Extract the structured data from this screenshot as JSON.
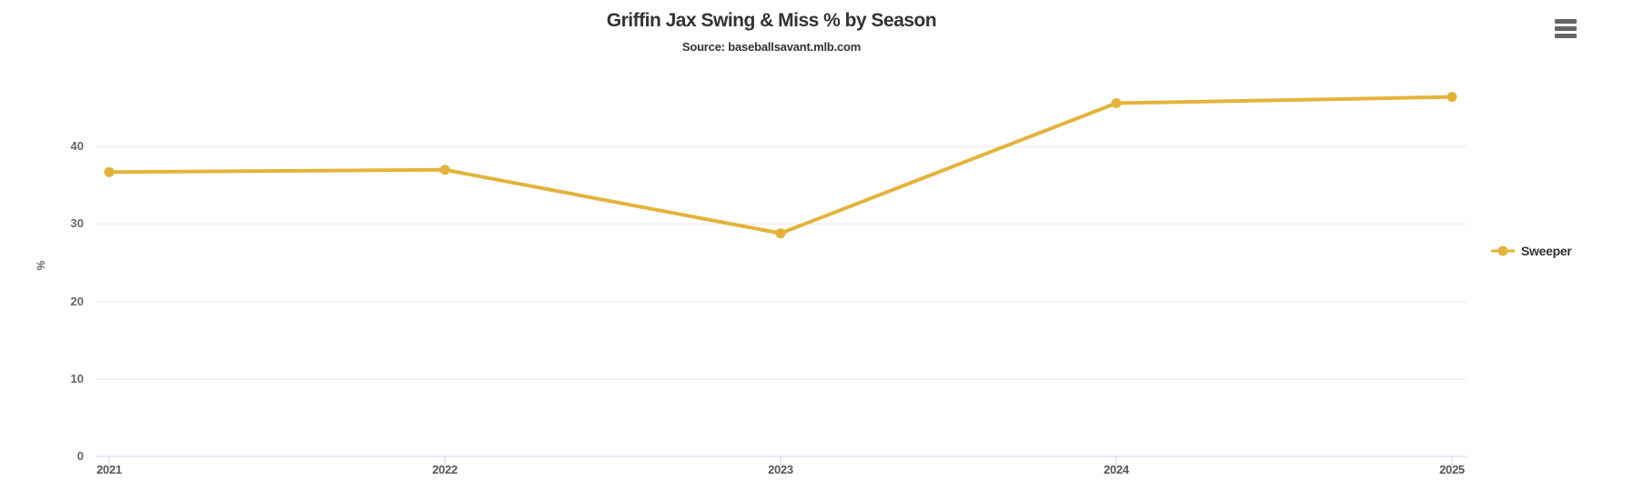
{
  "chart": {
    "title": "Griffin Jax Swing & Miss % by Season",
    "subtitle": "Source: baseballsavant.mlb.com",
    "yaxis_title": "%",
    "colors": {
      "series": "#E3B33C",
      "grid": "#e6e6e6",
      "axis_line": "#ccd6eb",
      "title_text": "#333333",
      "y_label_text": "#666666",
      "x_label_text": "#555555",
      "menu_icon": "#666666",
      "background": "#ffffff"
    }
  },
  "legend": {
    "items": [
      {
        "label": "Sweeper",
        "color": "#E3B33C"
      }
    ]
  },
  "chart_data": {
    "type": "line",
    "categories": [
      "2021",
      "2022",
      "2023",
      "2024",
      "2025"
    ],
    "series": [
      {
        "name": "Sweeper",
        "color": "#E3B33C",
        "values": [
          36.7,
          37.0,
          28.8,
          45.6,
          46.4
        ]
      }
    ],
    "title": "Griffin Jax Swing & Miss % by Season",
    "subtitle": "Source: baseballsavant.mlb.com",
    "xlabel": "",
    "ylabel": "%",
    "ylim": [
      0,
      47
    ],
    "yticks": [
      0,
      10,
      20,
      30,
      40
    ],
    "grid": true,
    "legend_position": "middle-right"
  }
}
